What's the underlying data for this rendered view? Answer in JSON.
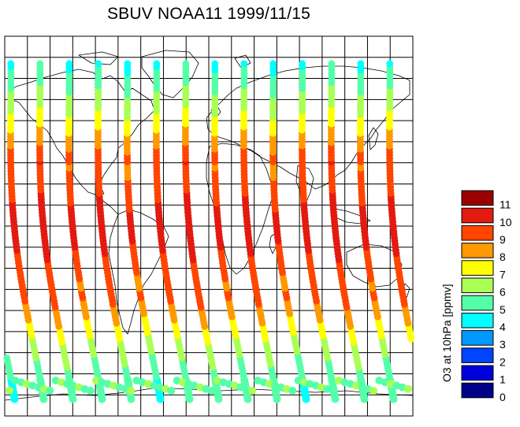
{
  "title": "SBUV NOAA11 1999/11/15",
  "colorbar": {
    "title": "O3 at 10hPa [ppmv]",
    "levels": [
      {
        "value": "11",
        "color": "#9b0000"
      },
      {
        "value": "10",
        "color": "#e31a10"
      },
      {
        "value": "9",
        "color": "#ff4500"
      },
      {
        "value": "8",
        "color": "#ff9900"
      },
      {
        "value": "7",
        "color": "#ffff00"
      },
      {
        "value": "6",
        "color": "#aaff55"
      },
      {
        "value": "5",
        "color": "#55ffaa"
      },
      {
        "value": "4",
        "color": "#00ffff"
      },
      {
        "value": "3",
        "color": "#0099ff"
      },
      {
        "value": "2",
        "color": "#0044ff"
      },
      {
        "value": "1",
        "color": "#0000dd"
      },
      {
        "value": "0",
        "color": "#000088"
      }
    ]
  },
  "map": {
    "lon_range": [
      -180,
      180
    ],
    "lat_range": [
      -90,
      90
    ],
    "grid_step_lon": 20,
    "grid_step_lat": 10,
    "orbit_tracks_count": 14
  }
}
